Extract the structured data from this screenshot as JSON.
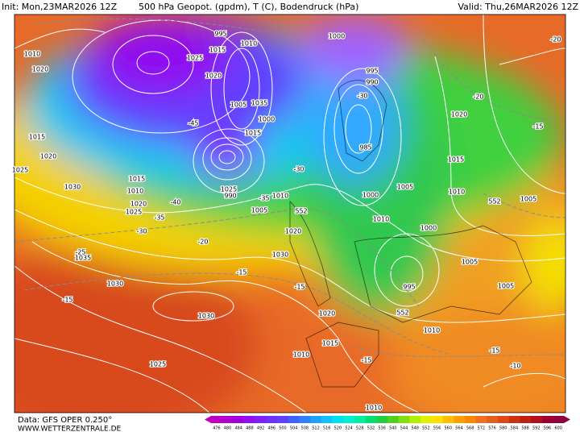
{
  "header": {
    "init": "Init: Mon,23MAR2026 12Z",
    "title": "500 hPa Geopot. (gpdm), T (C), Bodendruck (hPa)",
    "valid": "Valid: Thu,26MAR2026 12Z"
  },
  "footer": {
    "source": "Data: GFS OPER 0.250°",
    "site": "WWW.WETTERZENTRALE.DE"
  },
  "scale": {
    "values": [
      476,
      480,
      484,
      488,
      492,
      496,
      500,
      504,
      508,
      512,
      516,
      520,
      524,
      528,
      532,
      536,
      540,
      544,
      548,
      552,
      556,
      560,
      564,
      568,
      572,
      576,
      580,
      584,
      588,
      592,
      596,
      600
    ],
    "colors": [
      "#c000c0",
      "#b000d0",
      "#a000e0",
      "#9010f0",
      "#8020ff",
      "#7030ff",
      "#6040ff",
      "#4060ff",
      "#3080ff",
      "#20a0ff",
      "#10c0ff",
      "#00e0f0",
      "#00f0d0",
      "#00f0a0",
      "#00e070",
      "#20d040",
      "#50d020",
      "#80e010",
      "#b0f000",
      "#e0f000",
      "#ffe000",
      "#ffc000",
      "#ffa000",
      "#ff8800",
      "#f07020",
      "#e06020",
      "#e04818",
      "#d03010",
      "#c02010",
      "#b01020",
      "#a00030",
      "#900040"
    ]
  },
  "map_labels": [
    "1010",
    "1020",
    "1015",
    "1020",
    "1025",
    "1030",
    "1015",
    "1010",
    "1020",
    "1025",
    "-40",
    "-35",
    "-30",
    "-25",
    "1035",
    "-20",
    "1030",
    "-15",
    "1030",
    "1025",
    "-15",
    "1030",
    "-15",
    "1020",
    "1015",
    "1010",
    "-15",
    "1010",
    "1010",
    "-15",
    "-10",
    "1005",
    "1005",
    "1000",
    "1010",
    "1000",
    "1005",
    "1010",
    "1015",
    "1020",
    "-20",
    "-15",
    "1005",
    "552",
    "995",
    "552",
    "985",
    "-30",
    "990",
    "995",
    "995",
    "1015",
    "1010",
    "1020",
    "1005",
    "1035",
    "1025",
    "-45",
    "1000",
    "-30",
    "1015",
    "-35",
    "1005",
    "1010",
    "552",
    "1020",
    "1025",
    "990",
    "1000",
    "-20"
  ]
}
